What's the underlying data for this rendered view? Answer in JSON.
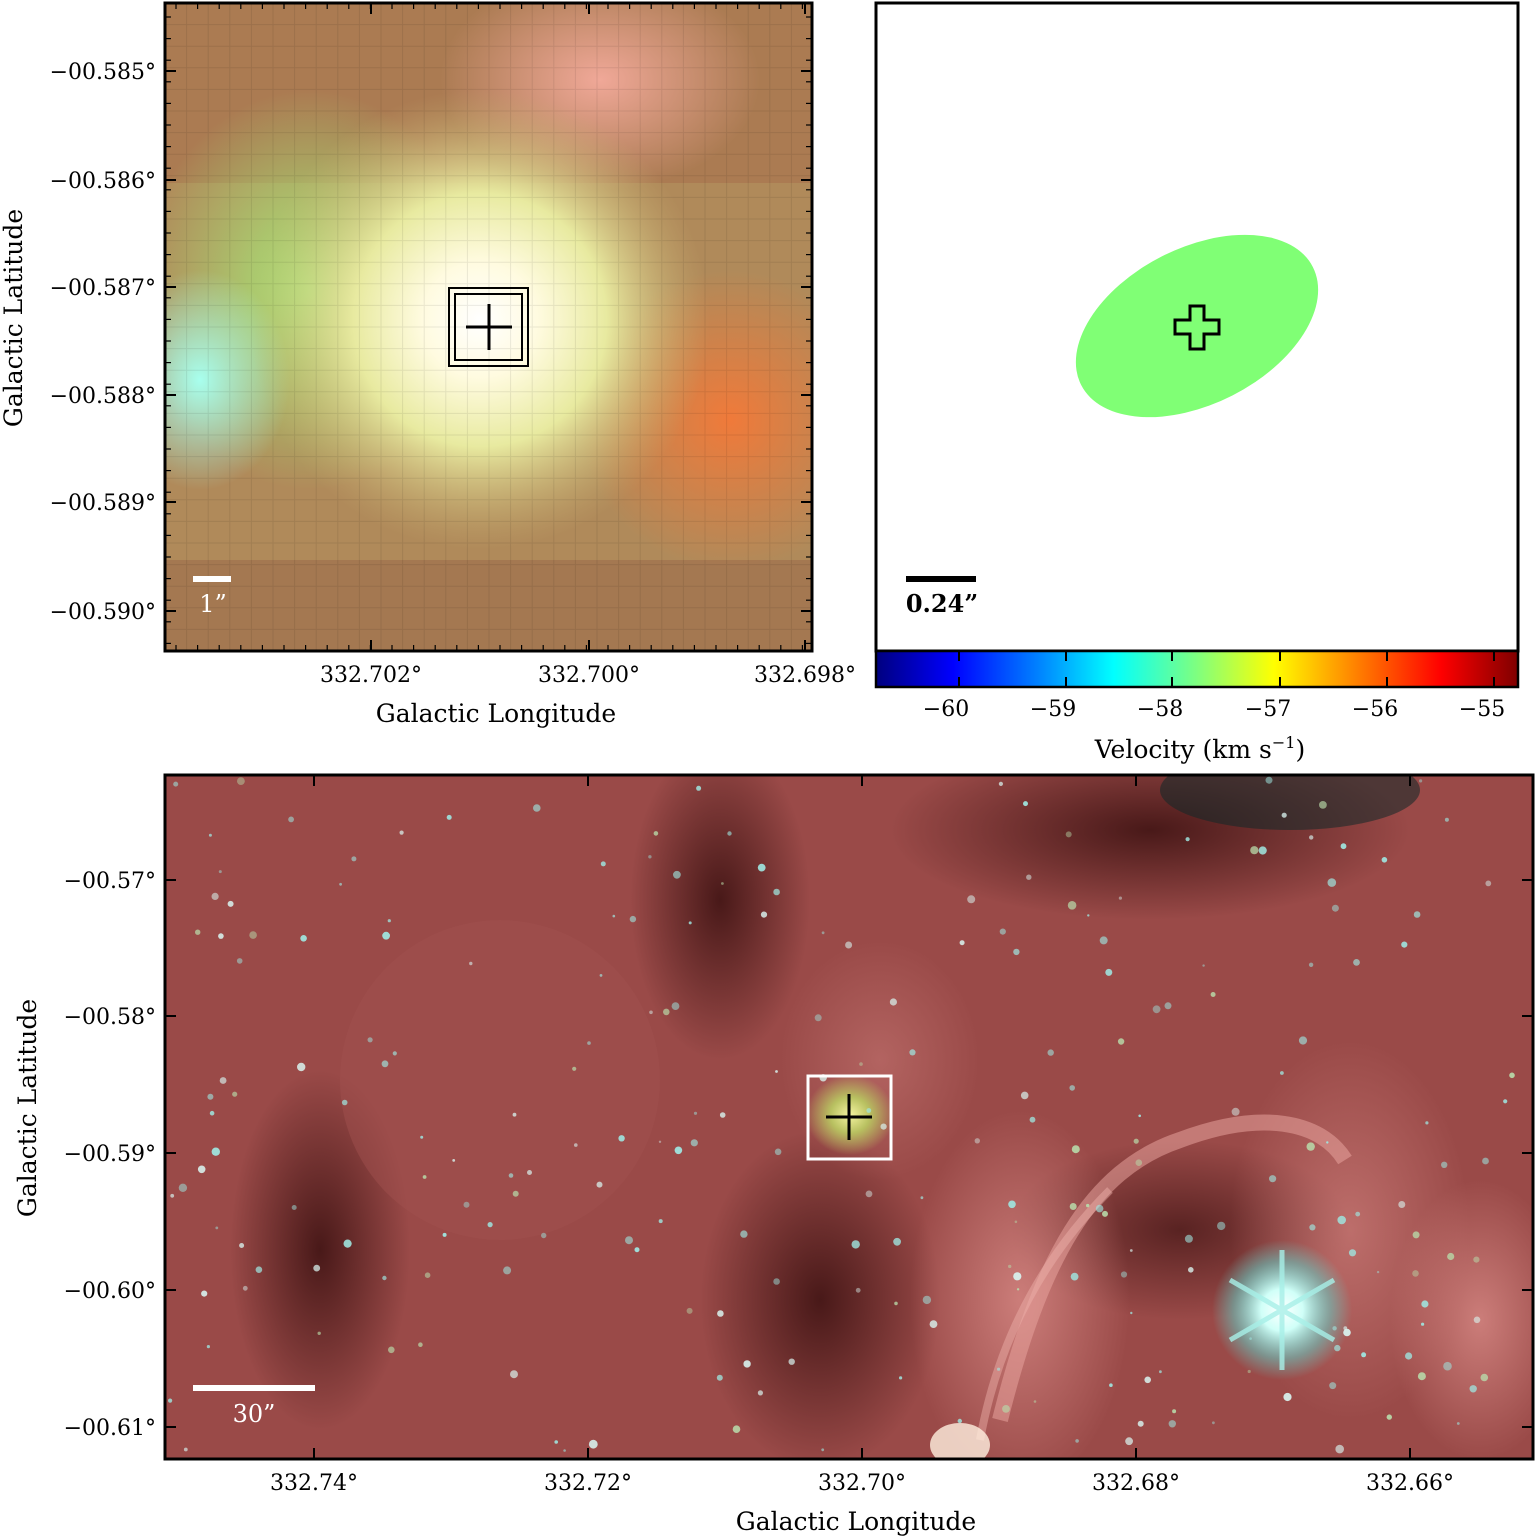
{
  "panel_zoom": {
    "ylabel": "Galactic Latitude",
    "xlabel": "Galactic Longitude",
    "yticks": [
      "−00.585°",
      "−00.586°",
      "−00.587°",
      "−00.588°",
      "−00.589°",
      "−00.590°"
    ],
    "xticks": [
      "332.702°",
      "332.700°",
      "332.698°"
    ],
    "scalebar_label": "1”"
  },
  "panel_velocity": {
    "scalebar_label": "0.24”",
    "blob_color": "#80ff75",
    "colorbar": {
      "label": "Velocity (km s",
      "label_exp": "−1",
      "label_close": ")",
      "ticks": [
        "−60",
        "−59",
        "−58",
        "−57",
        "−56",
        "−55"
      ],
      "colormap": [
        "#00007f",
        "#0000ff",
        "#007fff",
        "#00ffff",
        "#7fff7f",
        "#ffff00",
        "#ff7f00",
        "#ff0000",
        "#7f0000"
      ]
    }
  },
  "panel_wide": {
    "ylabel": "Galactic Latitude",
    "xlabel": "Galactic Longitude",
    "yticks": [
      "−00.57°",
      "−00.58°",
      "−00.59°",
      "−00.60°",
      "−00.61°"
    ],
    "xticks": [
      "332.74°",
      "332.72°",
      "332.70°",
      "332.68°",
      "332.66°"
    ],
    "scalebar_label": "30”"
  }
}
